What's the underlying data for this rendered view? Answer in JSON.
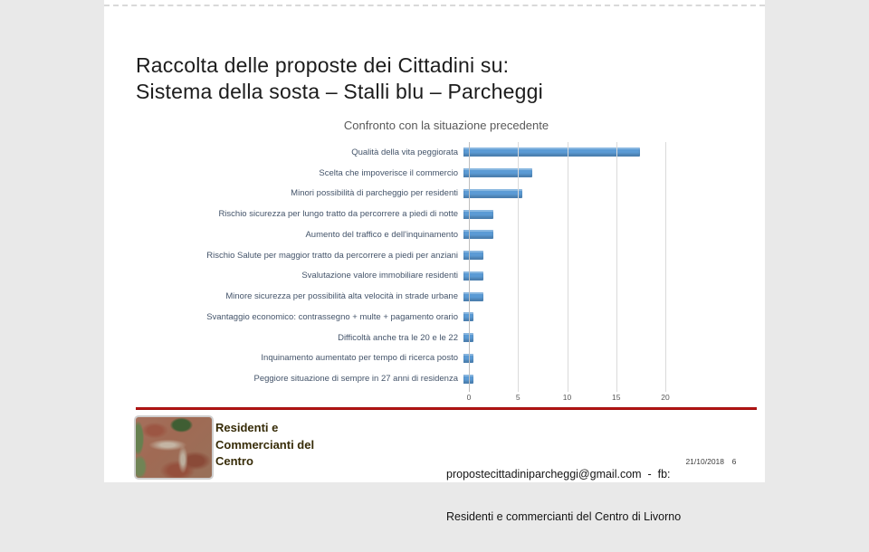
{
  "slide": {
    "title_line1": "Raccolta delle proposte dei Cittadini su:",
    "title_line2": "Sistema della sosta – Stalli blu – Parcheggi",
    "date": "21/10/2018",
    "page_number": "6"
  },
  "chart_data": {
    "type": "bar",
    "orientation": "horizontal",
    "title": "Confronto con la situazione precedente",
    "categories": [
      "Qualità della vita peggiorata",
      "Scelta che impoverisce il commercio",
      "Minori possibilità di parcheggio per residenti",
      "Rischio sicurezza per lungo tratto da percorrere a piedi di notte",
      "Aumento del traffico e dell'inquinamento",
      "Rischio Salute per maggior tratto da percorrere a piedi per anziani",
      "Svalutazione valore immobiliare residenti",
      "Minore sicurezza per possibilità alta velocità in strade urbane",
      "Svantaggio economico: contrassegno + multe + pagamento orario",
      "Difficoltà anche tra le 20 e le 22",
      "Inquinamento aumentato per tempo di ricerca posto",
      "Peggiore situazione di sempre in 27 anni di residenza"
    ],
    "values": [
      18,
      7,
      6,
      3,
      3,
      2,
      2,
      2,
      1,
      1,
      1,
      1
    ],
    "xlim": [
      0,
      20
    ],
    "xticks": [
      0,
      5,
      10,
      15,
      20
    ],
    "grid": true,
    "legend": "none",
    "bar_color": "#5b9bd5",
    "label_color": "#44546a",
    "title_color": "#595959"
  },
  "footer": {
    "logo_description": "aerial-photo-of-city-center",
    "brand_name": "Residenti e Commercianti del Centro",
    "contact_line1": "propostecittadiniparcheggi@gmail.com  -  fb:",
    "contact_line2": "Residenti e commercianti del Centro di Livorno"
  },
  "colors": {
    "background": "#e9e9e9",
    "slide_background": "#ffffff",
    "divider_red": "#b21110",
    "brand_text": "#372c08"
  }
}
